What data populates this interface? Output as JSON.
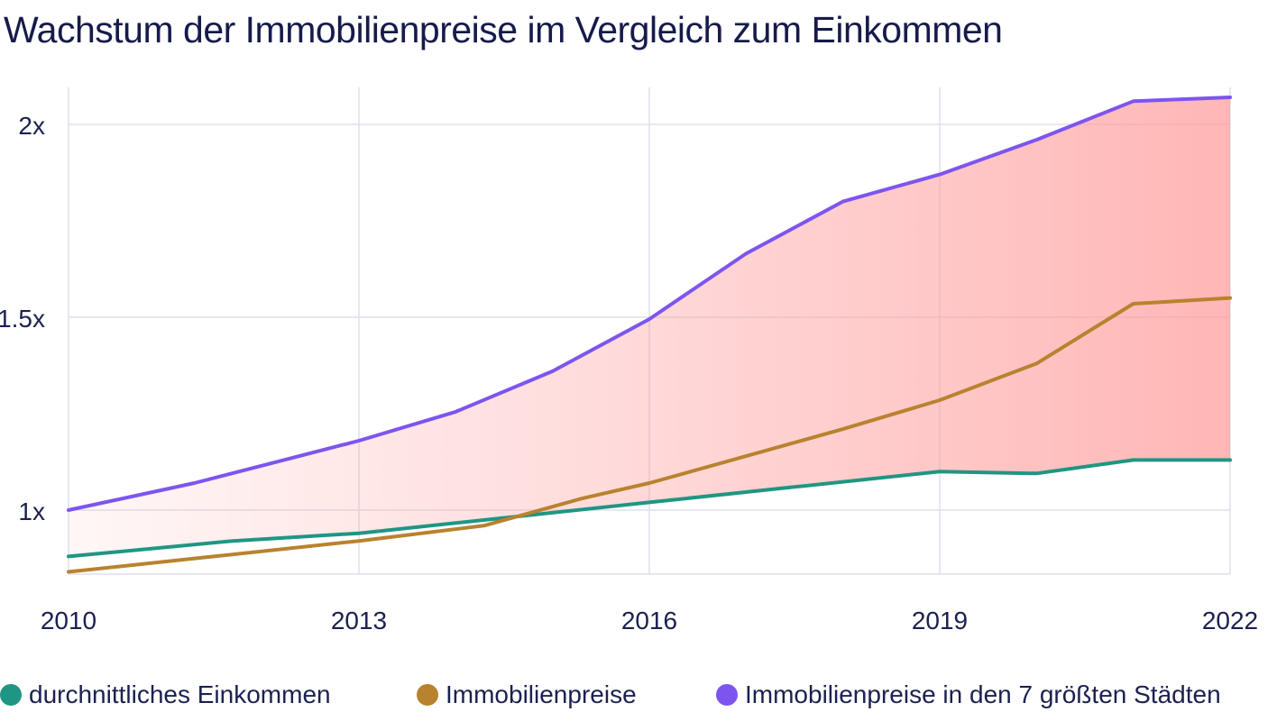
{
  "chart_data": {
    "type": "line",
    "title": "Wachstum der Immobilienpreise im Vergleich zum Einkommen",
    "xlabel": "",
    "ylabel": "",
    "x_ticks": [
      "2010",
      "2013",
      "2016",
      "2019",
      "2022"
    ],
    "y_ticks": [
      "1x",
      "1.5x",
      "2x"
    ],
    "xlim": [
      2010,
      2022
    ],
    "ylim": [
      0.84,
      2.1
    ],
    "grid": true,
    "legend_position": "bottom",
    "shaded_area_between": [
      "Immobilienpreise in den 7 größten Städten",
      "durchnittliches Einkommen"
    ],
    "series": [
      {
        "name": "durchnittliches Einkommen",
        "color": "#1f9683",
        "x": [
          2010,
          2011.7,
          2013,
          2014.5,
          2016,
          2017.5,
          2019,
          2020,
          2021,
          2022
        ],
        "values": [
          0.88,
          0.92,
          0.94,
          0.98,
          1.02,
          1.06,
          1.1,
          1.095,
          1.13,
          1.13
        ]
      },
      {
        "name": "Immobilienpreise",
        "color": "#b9822e",
        "x": [
          2010,
          2011.5,
          2013,
          2014.3,
          2015.3,
          2016,
          2017,
          2018,
          2019,
          2020,
          2021,
          2022
        ],
        "values": [
          0.84,
          0.88,
          0.92,
          0.96,
          1.03,
          1.07,
          1.14,
          1.21,
          1.285,
          1.38,
          1.535,
          1.55
        ]
      },
      {
        "name": "Immobilienpreise in den 7 größten Städten",
        "color": "#7d55ee",
        "x": [
          2010,
          2011.3,
          2013,
          2014,
          2015,
          2016,
          2017,
          2018,
          2019,
          2020,
          2021,
          2022
        ],
        "values": [
          1.0,
          1.07,
          1.18,
          1.255,
          1.36,
          1.495,
          1.665,
          1.8,
          1.87,
          1.96,
          2.06,
          2.07
        ]
      }
    ]
  }
}
